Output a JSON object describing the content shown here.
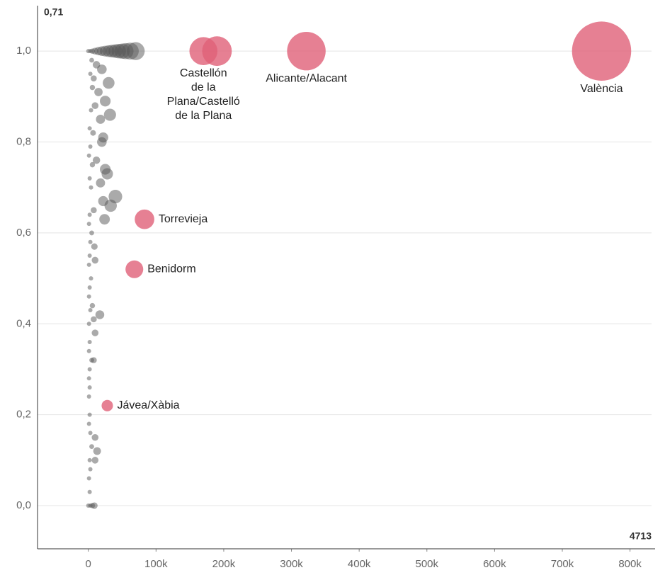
{
  "chart_data": {
    "type": "scatter",
    "annotations": [
      "0,71",
      "4713"
    ],
    "xlim": [
      -75000,
      837000
    ],
    "ylim": [
      -0.095,
      1.1
    ],
    "xticks": [
      0,
      {
        "value": 100000,
        "label": "100k"
      },
      {
        "value": 200000,
        "label": "200k"
      },
      {
        "value": 300000,
        "label": "300k"
      },
      {
        "value": 400000,
        "label": "400k"
      },
      {
        "value": 500000,
        "label": "500k"
      },
      {
        "value": 600000,
        "label": "600k"
      },
      {
        "value": 700000,
        "label": "700k"
      },
      {
        "value": 800000,
        "label": "800k"
      }
    ],
    "yticks": [
      {
        "value": 0,
        "label": "0,0"
      },
      {
        "value": 0.2,
        "label": "0,2"
      },
      {
        "value": 0.4,
        "label": "0,4"
      },
      {
        "value": 0.6,
        "label": "0,6"
      },
      {
        "value": 0.8,
        "label": "0,8"
      },
      {
        "value": 1,
        "label": "1,0"
      }
    ],
    "grid": true,
    "series": [
      {
        "color": "#555555",
        "x": [
          0,
          3000,
          6000,
          10000,
          15000,
          20000,
          25000,
          30000,
          35000,
          40000,
          45000,
          50000,
          55000,
          62000,
          70000,
          5000,
          12000,
          3000,
          8000,
          20000,
          30000,
          6000,
          15000,
          25000,
          10000,
          32000,
          18000,
          4000,
          2000,
          7000,
          22000,
          20000,
          3000,
          1000,
          12000,
          25000,
          28000,
          6000,
          2000,
          18000,
          4000,
          40000,
          22000,
          33000,
          24000,
          8000,
          2000,
          1000,
          5000,
          3000,
          9000,
          2000,
          1000,
          10000,
          4000,
          2000,
          1000,
          6000,
          17000,
          3000,
          8000,
          1000,
          10000,
          2000,
          1000,
          5000,
          2000,
          8000,
          1000,
          2000,
          1000,
          2000,
          1000,
          3000,
          10000,
          5000,
          13000,
          2000,
          10000,
          3000,
          1000,
          2000,
          0,
          3000,
          6000,
          9000
        ],
        "values": [
          1,
          1,
          1,
          1,
          1,
          1,
          1,
          1,
          1,
          1,
          1,
          1,
          1,
          1,
          1,
          0.98,
          0.97,
          0.95,
          0.94,
          0.96,
          0.93,
          0.92,
          0.91,
          0.89,
          0.88,
          0.86,
          0.85,
          0.87,
          0.83,
          0.82,
          0.81,
          0.8,
          0.79,
          0.77,
          0.76,
          0.74,
          0.73,
          0.75,
          0.72,
          0.71,
          0.7,
          0.68,
          0.67,
          0.66,
          0.63,
          0.65,
          0.64,
          0.62,
          0.6,
          0.58,
          0.57,
          0.55,
          0.53,
          0.54,
          0.5,
          0.48,
          0.46,
          0.44,
          0.42,
          0.43,
          0.41,
          0.4,
          0.38,
          0.36,
          0.34,
          0.32,
          0.3,
          0.32,
          0.28,
          0.26,
          0.24,
          0.2,
          0.18,
          0.16,
          0.15,
          0.13,
          0.12,
          0.1,
          0.1,
          0.08,
          0.06,
          0.03,
          0,
          0,
          0,
          0
        ]
      },
      {
        "color": "#e06078",
        "x": [
          758000,
          322000,
          170000,
          190000,
          83000,
          68000,
          28000
        ],
        "values": [
          1,
          1,
          1,
          1,
          0.63,
          0.52,
          0.22
        ],
        "labels": [
          [
            "València"
          ],
          [
            "Alicante/Alacant"
          ],
          [
            "Castellón",
            "de la",
            "Plana/Castelló",
            "de la Plana"
          ],
          null,
          [
            "Torrevieja"
          ],
          [
            "Benidorm"
          ],
          [
            "Jávea/Xàbia"
          ]
        ]
      }
    ]
  }
}
